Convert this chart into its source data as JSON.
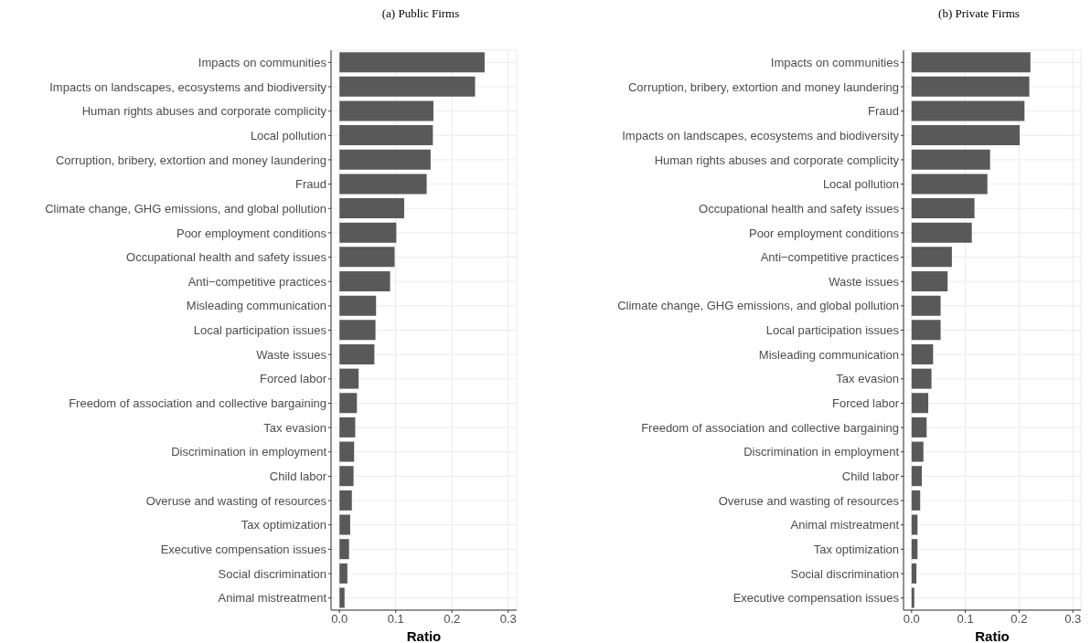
{
  "chart_data": [
    {
      "type": "bar",
      "orientation": "horizontal",
      "title": "(a) Public Firms",
      "xlabel": "Ratio",
      "color": "#595959",
      "grid": true,
      "xlim": [
        -0.015,
        0.315
      ],
      "xticks": [
        {
          "value": 0,
          "label": "0.0"
        },
        0.1,
        0.2,
        0.3
      ],
      "categories": [
        "Impacts on communities",
        "Impacts on landscapes, ecosystems and biodiversity",
        "Human rights abuses and corporate complicity",
        "Local pollution",
        "Corruption, bribery, extortion and money laundering",
        "Fraud",
        "Climate change, GHG emissions, and global pollution",
        "Poor employment conditions",
        "Occupational health and safety issues",
        "Anti−competitive practices",
        "Misleading communication",
        "Local participation issues",
        "Waste issues",
        "Forced labor",
        "Freedom of association and collective bargaining",
        "Tax evasion",
        "Discrimination in employment",
        "Child labor",
        "Overuse and wasting of resources",
        "Tax optimization",
        "Executive compensation issues",
        "Social discrimination",
        "Animal mistreatment"
      ],
      "values": [
        0.258,
        0.241,
        0.167,
        0.166,
        0.162,
        0.155,
        0.115,
        0.101,
        0.098,
        0.09,
        0.065,
        0.064,
        0.062,
        0.034,
        0.031,
        0.028,
        0.026,
        0.025,
        0.022,
        0.019,
        0.017,
        0.014,
        0.009
      ]
    },
    {
      "type": "bar",
      "orientation": "horizontal",
      "title": "(b) Private Firms",
      "xlabel": "Ratio",
      "color": "#595959",
      "grid": true,
      "xlim": [
        -0.015,
        0.315
      ],
      "xticks": [
        {
          "value": 0,
          "label": "0.0"
        },
        0.1,
        0.2,
        0.3
      ],
      "categories": [
        "Impacts on communities",
        "Corruption, bribery, extortion and money laundering",
        "Fraud",
        "Impacts on landscapes, ecosystems and biodiversity",
        "Human rights abuses and corporate complicity",
        "Local pollution",
        "Occupational health and safety issues",
        "Poor employment conditions",
        "Anti−competitive practices",
        "Waste issues",
        "Climate change, GHG emissions, and global pollution",
        "Local participation issues",
        "Misleading communication",
        "Tax evasion",
        "Forced labor",
        "Freedom of association and collective bargaining",
        "Discrimination in employment",
        "Child labor",
        "Overuse and wasting of resources",
        "Animal mistreatment",
        "Tax optimization",
        "Social discrimination",
        "Executive compensation issues"
      ],
      "values": [
        0.221,
        0.219,
        0.21,
        0.201,
        0.146,
        0.141,
        0.117,
        0.112,
        0.075,
        0.067,
        0.054,
        0.054,
        0.04,
        0.037,
        0.031,
        0.028,
        0.022,
        0.019,
        0.016,
        0.011,
        0.011,
        0.009,
        0.005
      ]
    }
  ]
}
